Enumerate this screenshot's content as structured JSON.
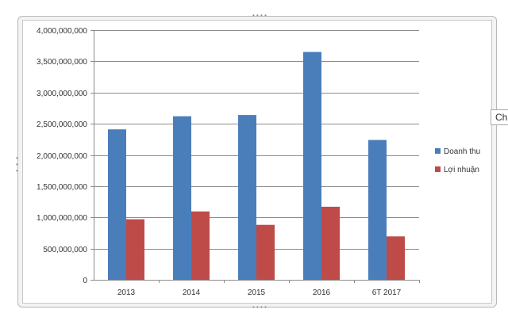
{
  "tooltip": {
    "text": "Ch"
  },
  "chart_data": {
    "type": "bar",
    "categories": [
      "2013",
      "2014",
      "2015",
      "2016",
      "6T 2017"
    ],
    "series": [
      {
        "name": "Doanh thu",
        "color": "#4a7ebb",
        "values": [
          2410000000,
          2620000000,
          2640000000,
          3650000000,
          2240000000
        ]
      },
      {
        "name": "Lợi nhuận",
        "color": "#be4b48",
        "values": [
          970000000,
          1095000000,
          880000000,
          1170000000,
          695000000
        ]
      }
    ],
    "ylim": [
      0,
      4000000000
    ],
    "yticks": [
      0,
      500000000,
      1000000000,
      1500000000,
      2000000000,
      2500000000,
      3000000000,
      3500000000,
      4000000000
    ],
    "ytick_labels": [
      "0",
      "500,000,000",
      "1,000,000,000",
      "1,500,000,000",
      "2,000,000,000",
      "2,500,000,000",
      "3,000,000,000",
      "3,500,000,000",
      "4,000,000,000"
    ],
    "grid": true,
    "legend_position": "right"
  }
}
